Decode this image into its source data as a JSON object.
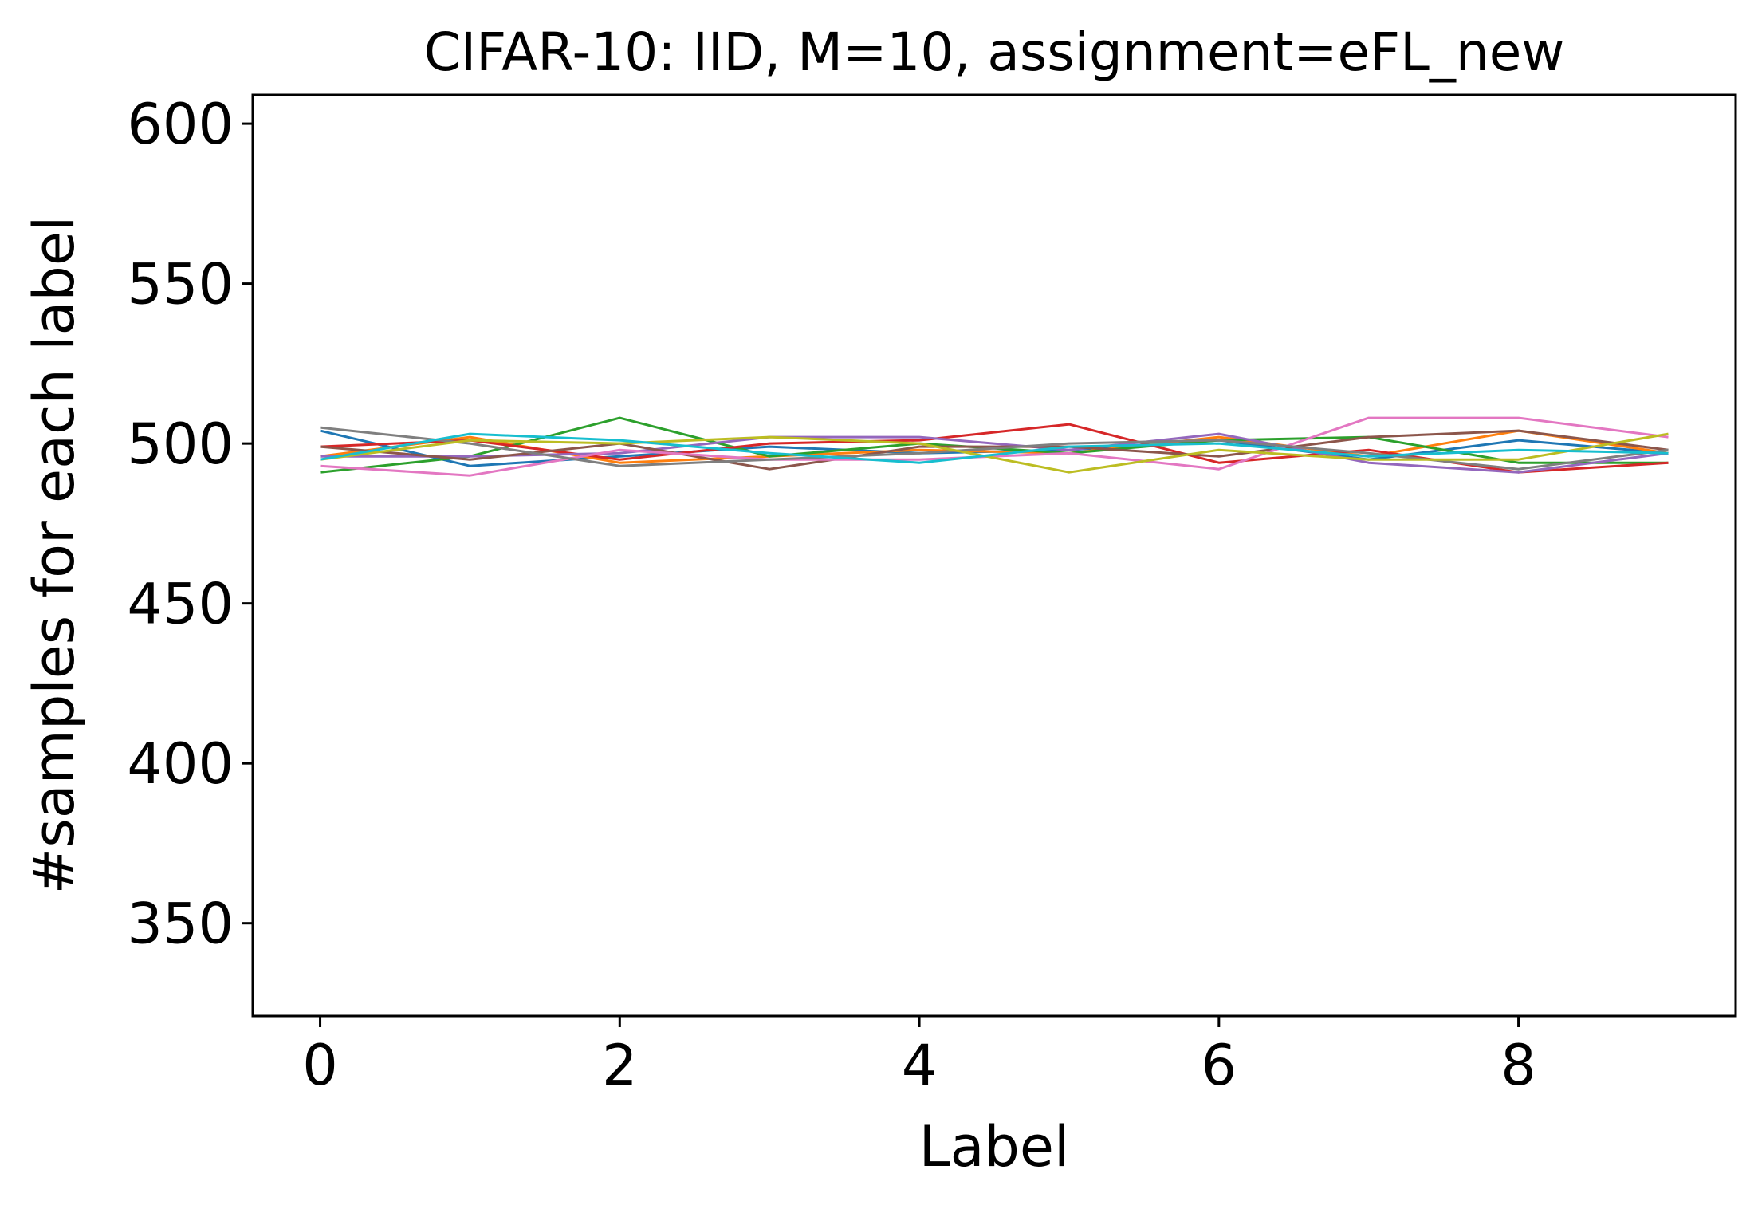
{
  "chart_data": {
    "type": "line",
    "title": "CIFAR-10: IID, M=10, assignment=eFL_new",
    "xlabel": "Label",
    "ylabel": "#samples for each label",
    "xlim": [
      -0.45,
      9.45
    ],
    "ylim": [
      321,
      609
    ],
    "xticks": [
      0,
      2,
      4,
      6,
      8
    ],
    "yticks": [
      350,
      400,
      450,
      500,
      550,
      600
    ],
    "grid": false,
    "legend": "none",
    "x": [
      0,
      1,
      2,
      3,
      4,
      5,
      6,
      7,
      8,
      9
    ],
    "series": [
      {
        "color": "#1f77b4",
        "values": [
          504,
          493,
          496,
          499,
          497,
          498,
          501,
          495,
          501,
          497
        ]
      },
      {
        "color": "#ff7f0e",
        "values": [
          496,
          502,
          494,
          496,
          498,
          497,
          502,
          496,
          504,
          497
        ]
      },
      {
        "color": "#2ca02c",
        "values": [
          491,
          496,
          508,
          496,
          500,
          497,
          501,
          502,
          494,
          494
        ]
      },
      {
        "color": "#d62728",
        "values": [
          499,
          501,
          495,
          500,
          501,
          506,
          494,
          498,
          491,
          494
        ]
      },
      {
        "color": "#9467bd",
        "values": [
          496,
          496,
          497,
          502,
          502,
          498,
          503,
          494,
          491,
          497
        ]
      },
      {
        "color": "#8c564b",
        "values": [
          499,
          495,
          500,
          492,
          499,
          499,
          496,
          502,
          504,
          498
        ]
      },
      {
        "color": "#e377c2",
        "values": [
          493,
          490,
          498,
          495,
          495,
          497,
          492,
          508,
          508,
          502
        ]
      },
      {
        "color": "#7f7f7f",
        "values": [
          505,
          500,
          493,
          495,
          497,
          500,
          501,
          497,
          492,
          498
        ]
      },
      {
        "color": "#bcbd22",
        "values": [
          495,
          501,
          500,
          502,
          500,
          491,
          498,
          495,
          495,
          503
        ]
      },
      {
        "color": "#17becf",
        "values": [
          495,
          503,
          501,
          497,
          494,
          499,
          500,
          496,
          498,
          497
        ]
      }
    ]
  }
}
